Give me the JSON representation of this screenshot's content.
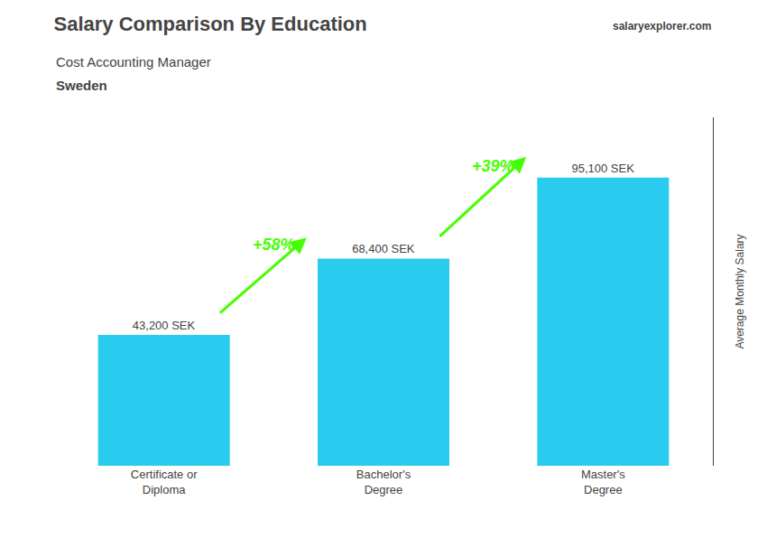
{
  "chart_data": {
    "type": "bar",
    "title": "Salary Comparison By Education",
    "subtitle": [
      "Cost Accounting Manager",
      "Sweden"
    ],
    "source": "salaryexplorer.com",
    "ylabel": "Average Monthly Salary",
    "categories": [
      "Certificate or\nDiploma",
      "Bachelor's\nDegree",
      "Master's\nDegree"
    ],
    "values": [
      43200,
      68400,
      95100
    ],
    "value_labels": [
      "43,200 SEK",
      "68,400 SEK",
      "95,100 SEK"
    ],
    "data_labels": true,
    "color": "#29ccee",
    "annotations": [
      {
        "text": "+58%",
        "color": "#44ff00"
      },
      {
        "text": "+39%",
        "color": "#44ff00"
      }
    ],
    "ylim": [
      0,
      115000
    ],
    "grid": false,
    "tick_labels": "x"
  }
}
